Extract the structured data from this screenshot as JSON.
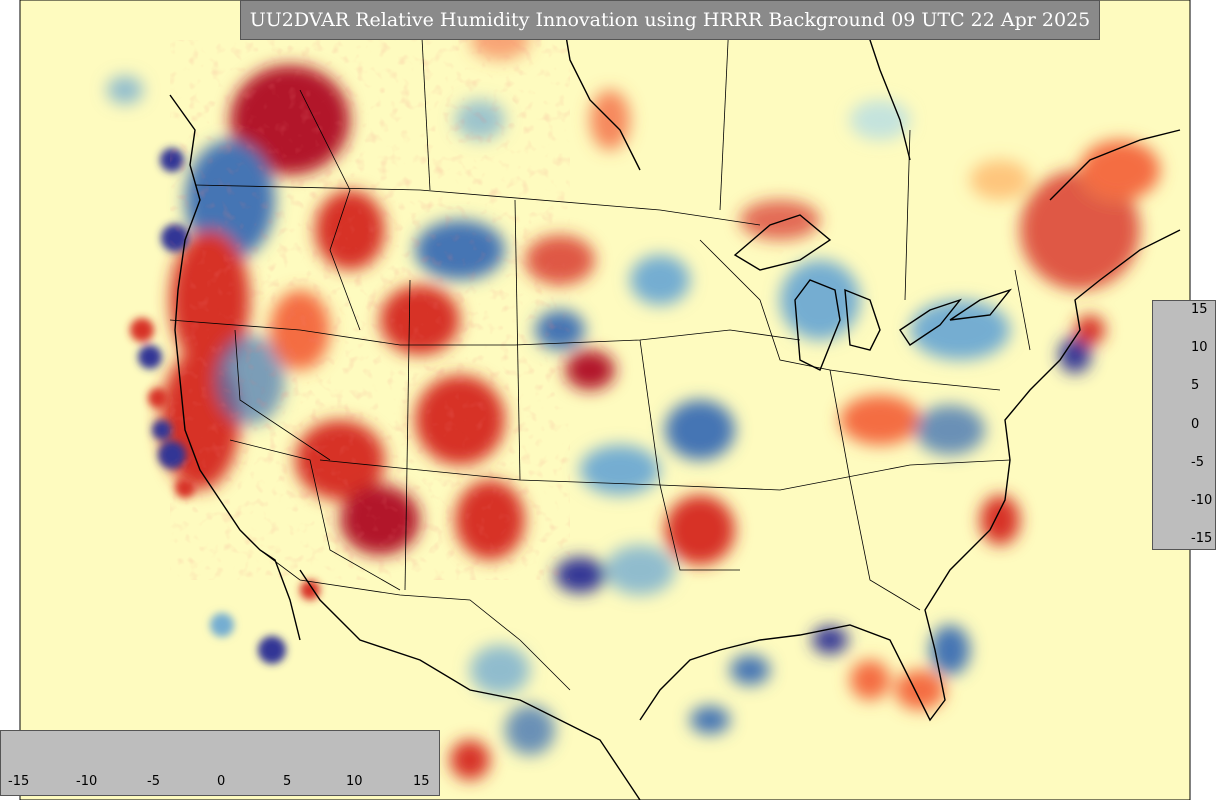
{
  "title": "UU2DVAR Relative Humidity Innovation using HRRR Background 09 UTC 22 Apr 2025",
  "colorbar": {
    "min": -15,
    "max": 15,
    "ticks": [
      "15",
      "10",
      "5",
      "0",
      "-5",
      "-10",
      "-15"
    ],
    "horizontal_ticks": [
      "-15",
      "-10",
      "-5",
      "0",
      "5",
      "10",
      "15"
    ],
    "colors": [
      "#313695",
      "#4575b4",
      "#74add1",
      "#abd9e9",
      "#e0f3f8",
      "#ffffbf",
      "#fee090",
      "#fdae61",
      "#f46d43",
      "#d73027",
      "#a50026"
    ]
  },
  "map": {
    "background_color": "#fefbbf",
    "region": "CONUS"
  }
}
